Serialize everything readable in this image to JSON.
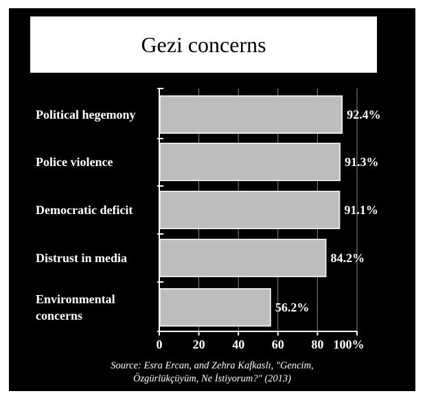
{
  "source": {
    "line1": "Source: Esra Ercan, and Zehra Kafkaslı, \"Gencim,",
    "line2": "Özgürlükçüyüm, Ne İstiyorum?\" (2013)"
  },
  "colors": {
    "background": "#000000",
    "bar_fill": "#bdbdbd",
    "bar_edge": "#e6e6e6",
    "text": "#ffffff",
    "title_box": "#ffffff"
  },
  "chart_data": {
    "type": "bar",
    "orientation": "horizontal",
    "title": "Gezi concerns",
    "categories": [
      [
        "Political hegemony"
      ],
      [
        "Police violence"
      ],
      [
        "Democratic deficit"
      ],
      [
        "Distrust in media"
      ],
      [
        "Environmental",
        "concerns"
      ]
    ],
    "values": [
      92.4,
      91.3,
      91.1,
      84.2,
      56.2
    ],
    "value_labels": [
      "92.4%",
      "91.3%",
      "91.1%",
      "84.2%",
      "56.2%"
    ],
    "x_ticks": [
      0,
      20,
      40,
      60,
      80,
      100
    ],
    "x_tick_labels": [
      "0",
      "20",
      "40",
      "60",
      "80",
      "100%"
    ],
    "xlim": [
      0,
      100
    ],
    "xlabel": "",
    "ylabel": "",
    "grid": true,
    "legend": "none"
  }
}
